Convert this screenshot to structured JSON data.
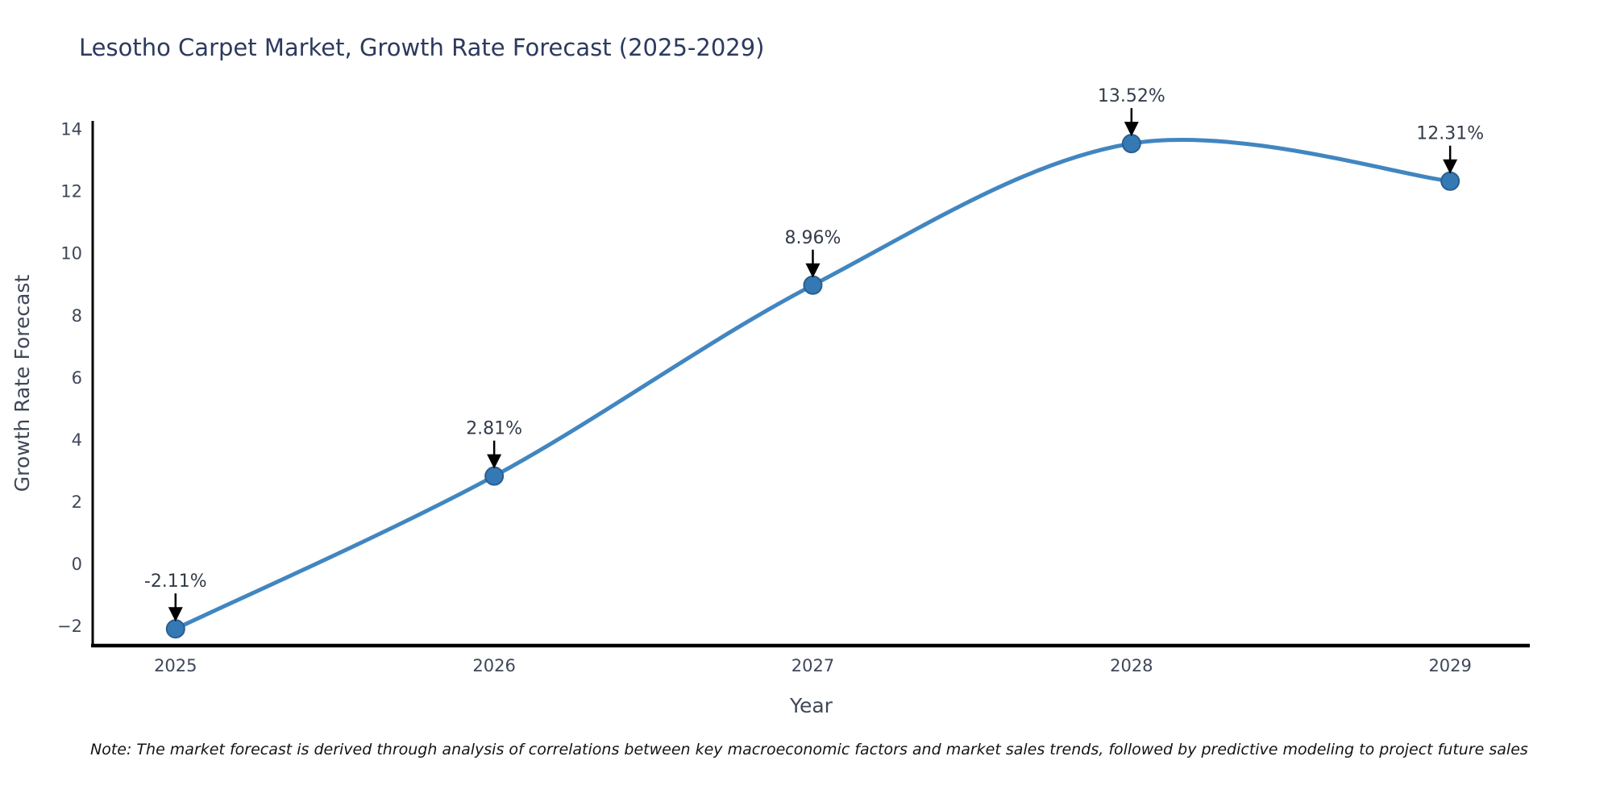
{
  "chart_data": {
    "type": "line",
    "title": "Lesotho Carpet Market, Growth Rate Forecast (2025-2029)",
    "xlabel": "Year",
    "ylabel": "Growth Rate Forecast",
    "categories": [
      2025,
      2026,
      2027,
      2028,
      2029
    ],
    "x_tick_labels": [
      "2025",
      "2026",
      "2027",
      "2028",
      "2029"
    ],
    "series": [
      {
        "name": "Growth Rate Forecast",
        "values": [
          -2.11,
          2.81,
          8.96,
          13.52,
          12.31
        ],
        "point_labels": [
          "-2.11%",
          "2.81%",
          "8.96%",
          "13.52%",
          "12.31%"
        ]
      }
    ],
    "yticks": [
      -2,
      0,
      2,
      4,
      6,
      8,
      10,
      12,
      14
    ],
    "ytick_labels": [
      "−2",
      "0",
      "2",
      "4",
      "6",
      "8",
      "10",
      "12",
      "14"
    ],
    "ylim": [
      -2.65,
      14.25
    ],
    "xlim": [
      2024.74,
      2029.25
    ],
    "grid": false,
    "legend": "none",
    "smooth": true,
    "annotation_arrows": true,
    "colors": {
      "line": "#4186c0",
      "marker_fill": "#3579b4",
      "marker_edge": "#2a5f8f",
      "axis": "#000000",
      "title_text": "#2d3a5e",
      "tick_text": "#3f4758",
      "axis_label_text": "#3f4758",
      "annotation_text": "#333c4a",
      "annotation_arrow": "#000000",
      "note_text": "#141414",
      "background": "#ffffff"
    }
  },
  "note": {
    "text": "Note: The market forecast is derived through analysis of correlations between key macroeconomic factors and market sales trends, followed by predictive modeling to project future sales"
  }
}
